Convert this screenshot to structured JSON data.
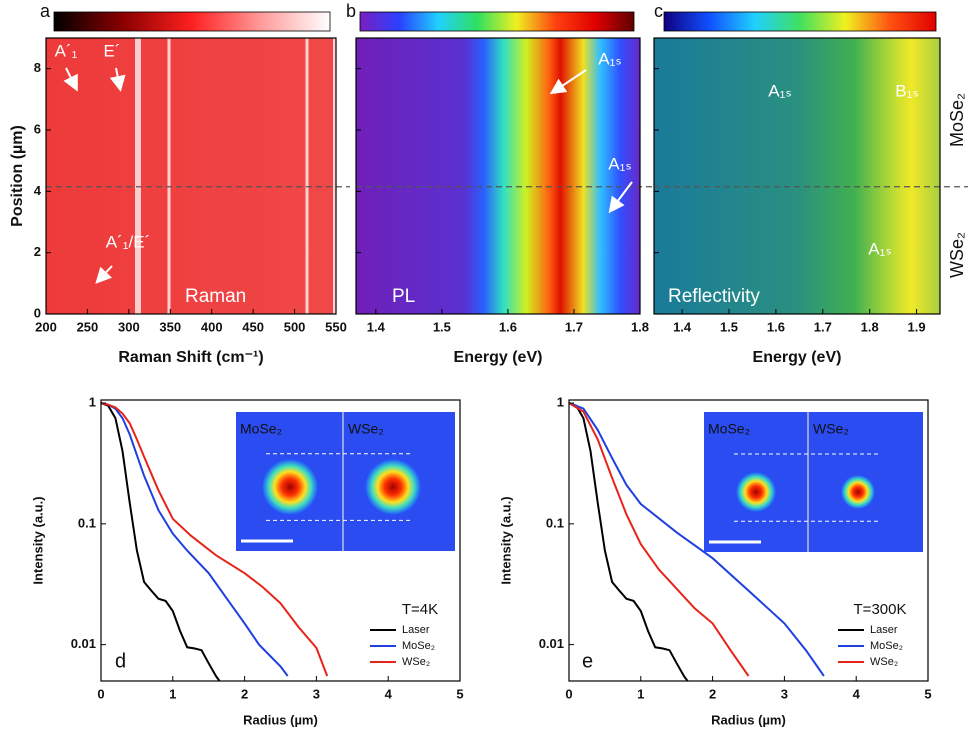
{
  "chart_data": [
    {
      "type": "heatmap",
      "panel_label": "a",
      "label": "Raman",
      "xlabel": "Raman Shift (cm⁻¹)",
      "ylabel": "Position (µm)",
      "xlim": [
        200,
        550
      ],
      "xticks": [
        200,
        250,
        300,
        350,
        400,
        450,
        500,
        550
      ],
      "ylim": [
        0,
        9
      ],
      "yticks": [
        0,
        2,
        4,
        6,
        8
      ],
      "colorbar": [
        "#000000",
        "#8b0000",
        "#ff2020",
        "#ff9a9a",
        "#ffffff"
      ],
      "divider": 4.15,
      "annotations": [
        "A´₁",
        "E´",
        "A´₁/E´"
      ]
    },
    {
      "type": "heatmap",
      "panel_label": "b",
      "label": "PL",
      "xlabel": "Energy (eV)",
      "xlim": [
        1.37,
        1.8
      ],
      "xticks": [
        1.4,
        1.5,
        1.6,
        1.7,
        1.8
      ],
      "ylim": [
        0,
        9
      ],
      "yticks": [
        0,
        2,
        4,
        6,
        8
      ],
      "colorbar": [
        "#7a1fc0",
        "#2a40ff",
        "#20d0ff",
        "#30e060",
        "#f0f020",
        "#ff4010",
        "#e00000",
        "#600000"
      ],
      "divider": 4.15,
      "annotations": [
        "A₁ₛ",
        "A₁ₛ"
      ]
    },
    {
      "type": "heatmap",
      "panel_label": "c",
      "label": "Reflectivity",
      "xlabel": "Energy (eV)",
      "xlim": [
        1.34,
        1.95
      ],
      "xticks": [
        1.4,
        1.5,
        1.6,
        1.7,
        1.8,
        1.9
      ],
      "ylim": [
        0,
        9
      ],
      "yticks": [
        0,
        2,
        4,
        6,
        8
      ],
      "colorbar": [
        "#100080",
        "#1050ff",
        "#20d0ff",
        "#40e060",
        "#f0f020",
        "#ff5010",
        "#e00000"
      ],
      "divider": 4.15,
      "annotations": [
        "A₁ₛ",
        "B₁ₛ",
        "A₁ₛ"
      ],
      "side_labels": [
        "MoSe₂",
        "WSe₂"
      ]
    },
    {
      "type": "line",
      "panel_label": "d",
      "annotation": "T=4K",
      "xlabel": "Radius (µm)",
      "ylabel": "Intensity (a.u.)",
      "xlim": [
        0,
        5
      ],
      "xticks": [
        0,
        1,
        2,
        3,
        4,
        5
      ],
      "ylim": [
        0.005,
        1.06
      ],
      "yticks": [
        0.01,
        0.1,
        1
      ],
      "log_y": true,
      "inset_labels": [
        "MoSe₂",
        "WSe₂"
      ],
      "series": [
        {
          "name": "Laser",
          "color": "#000000",
          "x": [
            0,
            0.1,
            0.2,
            0.3,
            0.4,
            0.5,
            0.6,
            0.7,
            0.8,
            0.9,
            1.0,
            1.1,
            1.2,
            1.3,
            1.4,
            1.5,
            1.6,
            1.65
          ],
          "values": [
            1,
            0.95,
            0.75,
            0.4,
            0.15,
            0.06,
            0.033,
            0.028,
            0.024,
            0.023,
            0.019,
            0.013,
            0.0095,
            0.0093,
            0.009,
            0.007,
            0.0055,
            0.005
          ]
        },
        {
          "name": "MoSe₂",
          "color": "#1f3fe0",
          "x": [
            0,
            0.1,
            0.2,
            0.3,
            0.4,
            0.5,
            0.6,
            0.7,
            0.8,
            1.0,
            1.2,
            1.5,
            1.8,
            2.0,
            2.2,
            2.5,
            2.6
          ],
          "values": [
            1,
            0.97,
            0.9,
            0.75,
            0.55,
            0.37,
            0.25,
            0.18,
            0.13,
            0.083,
            0.06,
            0.039,
            0.022,
            0.015,
            0.01,
            0.0066,
            0.0055
          ]
        },
        {
          "name": "WSe₂",
          "color": "#e8231a",
          "x": [
            0,
            0.1,
            0.2,
            0.3,
            0.4,
            0.5,
            0.6,
            0.7,
            0.8,
            1.0,
            1.25,
            1.6,
            2.0,
            2.25,
            2.5,
            2.75,
            3.0,
            3.15
          ],
          "values": [
            1,
            0.97,
            0.92,
            0.82,
            0.68,
            0.5,
            0.36,
            0.26,
            0.19,
            0.11,
            0.08,
            0.055,
            0.039,
            0.03,
            0.022,
            0.014,
            0.0094,
            0.0055
          ]
        }
      ]
    },
    {
      "type": "line",
      "panel_label": "e",
      "annotation": "T=300K",
      "xlabel": "Radius (µm)",
      "ylabel": "Intensity (a.u.)",
      "xlim": [
        0,
        5
      ],
      "xticks": [
        0,
        1,
        2,
        3,
        4,
        5
      ],
      "ylim": [
        0.005,
        1.06
      ],
      "yticks": [
        0.01,
        0.1,
        1
      ],
      "log_y": true,
      "inset_labels": [
        "MoSe₂",
        "WSe₂"
      ],
      "series": [
        {
          "name": "Laser",
          "color": "#000000",
          "x": [
            0,
            0.1,
            0.2,
            0.3,
            0.4,
            0.5,
            0.6,
            0.7,
            0.8,
            0.9,
            1.0,
            1.1,
            1.2,
            1.3,
            1.4,
            1.5,
            1.6,
            1.65
          ],
          "values": [
            1,
            0.95,
            0.75,
            0.4,
            0.15,
            0.06,
            0.033,
            0.028,
            0.024,
            0.023,
            0.019,
            0.013,
            0.0095,
            0.0093,
            0.009,
            0.007,
            0.0055,
            0.005
          ]
        },
        {
          "name": "MoSe₂",
          "color": "#1f3fe0",
          "x": [
            0,
            0.2,
            0.4,
            0.6,
            0.8,
            1.0,
            1.5,
            2.0,
            2.5,
            3.0,
            3.3,
            3.55
          ],
          "values": [
            1,
            0.9,
            0.6,
            0.35,
            0.21,
            0.146,
            0.085,
            0.052,
            0.028,
            0.015,
            0.009,
            0.0055
          ]
        },
        {
          "name": "WSe₂",
          "color": "#e8231a",
          "x": [
            0,
            0.2,
            0.4,
            0.6,
            0.8,
            1.0,
            1.25,
            1.5,
            1.75,
            2.0,
            2.25,
            2.5
          ],
          "values": [
            1,
            0.85,
            0.5,
            0.24,
            0.12,
            0.068,
            0.042,
            0.029,
            0.02,
            0.015,
            0.009,
            0.0055
          ]
        }
      ]
    }
  ]
}
